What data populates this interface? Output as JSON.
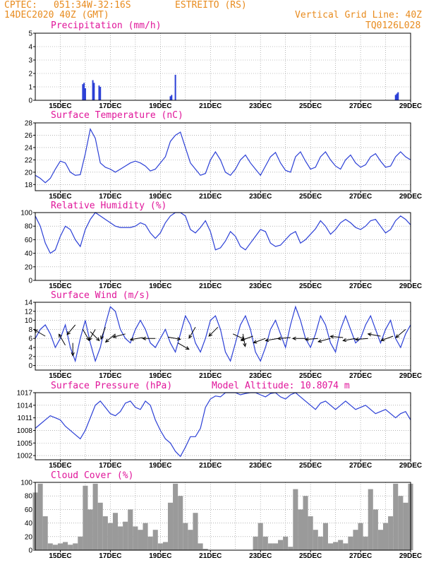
{
  "header": {
    "org": "CPTEC:",
    "coords": "051:34W-32:16S",
    "location": "ESTREITO (RS)",
    "date": "14DEC2020 40Z (GMT)",
    "grid_note": "Vertical Grid Line: 40Z",
    "code": "TQ0126L028"
  },
  "colors": {
    "header": "#e88b1e",
    "title": "#e0159a",
    "series": "#2b3fd6",
    "wind": "#000000"
  },
  "chart_data": [
    {
      "id": "precip",
      "type": "bar",
      "title": "Precipitation (mm/h)",
      "x_range": [
        14,
        29
      ],
      "ylim": [
        0,
        5
      ],
      "yticks": [
        0,
        1,
        2,
        3,
        4,
        5
      ],
      "x_ticks": [
        "15DEC",
        "17DEC",
        "19DEC",
        "21DEC",
        "23DEC",
        "25DEC",
        "27DEC",
        "29DEC"
      ],
      "x": [
        15.9,
        15.95,
        16.0,
        16.3,
        16.35,
        16.55,
        16.6,
        19.4,
        19.45,
        19.6,
        28.4,
        28.45,
        28.5
      ],
      "values": [
        1.2,
        1.3,
        0.9,
        1.5,
        1.3,
        1.1,
        1.0,
        0.3,
        0.4,
        1.9,
        0.4,
        0.5,
        0.6
      ]
    },
    {
      "id": "temp",
      "type": "line",
      "title": "Surface Temperature (nC)",
      "x_range": [
        14,
        29
      ],
      "ylim": [
        17,
        28
      ],
      "yticks": [
        18,
        20,
        22,
        24,
        26,
        28
      ],
      "x_ticks": [
        "15DEC",
        "17DEC",
        "19DEC",
        "21DEC",
        "23DEC",
        "25DEC",
        "27DEC",
        "29DEC"
      ],
      "x": [
        14.0,
        14.2,
        14.4,
        14.6,
        14.8,
        15.0,
        15.2,
        15.4,
        15.6,
        15.8,
        16.0,
        16.2,
        16.4,
        16.6,
        16.8,
        17.0,
        17.2,
        17.4,
        17.6,
        17.8,
        18.0,
        18.2,
        18.4,
        18.6,
        18.8,
        19.0,
        19.2,
        19.4,
        19.6,
        19.8,
        20.0,
        20.2,
        20.4,
        20.6,
        20.8,
        21.0,
        21.2,
        21.4,
        21.6,
        21.8,
        22.0,
        22.2,
        22.4,
        22.6,
        22.8,
        23.0,
        23.2,
        23.4,
        23.6,
        23.8,
        24.0,
        24.2,
        24.4,
        24.6,
        24.8,
        25.0,
        25.2,
        25.4,
        25.6,
        25.8,
        26.0,
        26.2,
        26.4,
        26.6,
        26.8,
        27.0,
        27.2,
        27.4,
        27.6,
        27.8,
        28.0,
        28.2,
        28.4,
        28.6,
        28.8,
        29.0
      ],
      "values": [
        19.5,
        19.0,
        18.3,
        19.0,
        20.5,
        21.8,
        21.5,
        20.0,
        19.5,
        19.6,
        23.0,
        27.0,
        25.5,
        21.5,
        20.8,
        20.5,
        20.0,
        20.5,
        21.0,
        21.5,
        21.8,
        21.5,
        21.0,
        20.2,
        20.5,
        21.5,
        22.5,
        25.0,
        26.0,
        26.5,
        24.0,
        21.5,
        20.5,
        19.5,
        19.8,
        22.0,
        23.3,
        22.0,
        20.0,
        19.5,
        20.5,
        22.0,
        22.8,
        21.5,
        20.5,
        19.5,
        21.0,
        22.5,
        23.2,
        21.5,
        20.3,
        20.0,
        22.5,
        23.3,
        21.8,
        20.5,
        20.8,
        22.5,
        23.3,
        22.0,
        21.0,
        20.5,
        22.0,
        22.8,
        21.5,
        20.8,
        21.2,
        22.5,
        23.0,
        21.8,
        20.8,
        21.0,
        22.5,
        23.3,
        22.5,
        22.0
      ]
    },
    {
      "id": "rh",
      "type": "line",
      "title": "Relative Humidity (%)",
      "x_range": [
        14,
        29
      ],
      "ylim": [
        0,
        100
      ],
      "yticks": [
        0,
        20,
        40,
        60,
        80,
        100
      ],
      "x_ticks": [
        "15DEC",
        "17DEC",
        "19DEC",
        "21DEC",
        "23DEC",
        "25DEC",
        "27DEC",
        "29DEC"
      ],
      "x": [
        14.0,
        14.2,
        14.4,
        14.6,
        14.8,
        15.0,
        15.2,
        15.4,
        15.6,
        15.8,
        16.0,
        16.2,
        16.4,
        16.6,
        16.8,
        17.0,
        17.2,
        17.4,
        17.6,
        17.8,
        18.0,
        18.2,
        18.4,
        18.6,
        18.8,
        19.0,
        19.2,
        19.4,
        19.6,
        19.8,
        20.0,
        20.2,
        20.4,
        20.6,
        20.8,
        21.0,
        21.2,
        21.4,
        21.6,
        21.8,
        22.0,
        22.2,
        22.4,
        22.6,
        22.8,
        23.0,
        23.2,
        23.4,
        23.6,
        23.8,
        24.0,
        24.2,
        24.4,
        24.6,
        24.8,
        25.0,
        25.2,
        25.4,
        25.6,
        25.8,
        26.0,
        26.2,
        26.4,
        26.6,
        26.8,
        27.0,
        27.2,
        27.4,
        27.6,
        27.8,
        28.0,
        28.2,
        28.4,
        28.6,
        28.8,
        29.0
      ],
      "values": [
        95,
        80,
        55,
        40,
        45,
        65,
        80,
        75,
        60,
        50,
        75,
        90,
        100,
        95,
        90,
        85,
        80,
        78,
        78,
        78,
        80,
        85,
        82,
        70,
        62,
        70,
        85,
        95,
        100,
        100,
        95,
        75,
        70,
        78,
        88,
        72,
        45,
        48,
        58,
        72,
        65,
        50,
        45,
        55,
        65,
        75,
        72,
        55,
        50,
        52,
        60,
        68,
        72,
        55,
        60,
        68,
        76,
        88,
        80,
        68,
        75,
        85,
        90,
        85,
        78,
        75,
        80,
        88,
        90,
        80,
        70,
        75,
        88,
        95,
        90,
        82
      ]
    },
    {
      "id": "wind",
      "type": "line",
      "title": "Surface Wind (m/s)",
      "x_range": [
        14,
        29
      ],
      "ylim": [
        -1,
        14
      ],
      "yticks": [
        0,
        2,
        4,
        6,
        8,
        10,
        12,
        14
      ],
      "x_ticks": [
        "15DEC",
        "17DEC",
        "19DEC",
        "21DEC",
        "23DEC",
        "25DEC",
        "27DEC",
        "29DEC"
      ],
      "x": [
        14.0,
        14.2,
        14.4,
        14.6,
        14.8,
        15.0,
        15.2,
        15.4,
        15.6,
        15.8,
        16.0,
        16.2,
        16.4,
        16.6,
        16.8,
        17.0,
        17.2,
        17.4,
        17.6,
        17.8,
        18.0,
        18.2,
        18.4,
        18.6,
        18.8,
        19.0,
        19.2,
        19.4,
        19.6,
        19.8,
        20.0,
        20.2,
        20.4,
        20.6,
        20.8,
        21.0,
        21.2,
        21.4,
        21.6,
        21.8,
        22.0,
        22.2,
        22.4,
        22.6,
        22.8,
        23.0,
        23.2,
        23.4,
        23.6,
        23.8,
        24.0,
        24.2,
        24.4,
        24.6,
        24.8,
        25.0,
        25.2,
        25.4,
        25.6,
        25.8,
        26.0,
        26.2,
        26.4,
        26.6,
        26.8,
        27.0,
        27.2,
        27.4,
        27.6,
        27.8,
        28.0,
        28.2,
        28.4,
        28.6,
        28.8,
        29.0
      ],
      "values": [
        6,
        8,
        9,
        7,
        4,
        6,
        9,
        4,
        1,
        6,
        10,
        5,
        1,
        4,
        9,
        13,
        12,
        8,
        6,
        5,
        8,
        10,
        8,
        5,
        4,
        6,
        8,
        5,
        3,
        7,
        11,
        9,
        5,
        3,
        6,
        10,
        11,
        8,
        3,
        1,
        5,
        9,
        11,
        8,
        3,
        1,
        4,
        8,
        10,
        7,
        4,
        9,
        13,
        10,
        6,
        4,
        7,
        11,
        9,
        5,
        3,
        8,
        11,
        8,
        5,
        6,
        9,
        11,
        8,
        5,
        8,
        10,
        6,
        4,
        7,
        9
      ],
      "arrows": [
        {
          "x": 14.4,
          "y": 6.5,
          "dir": 210
        },
        {
          "x": 15.2,
          "y": 4.5,
          "dir": 240
        },
        {
          "x": 15.5,
          "y": 5.0,
          "dir": 90
        },
        {
          "x": 15.6,
          "y": 9.0,
          "dir": 130
        },
        {
          "x": 15.9,
          "y": 8.0,
          "dir": 60
        },
        {
          "x": 16.2,
          "y": 7.5,
          "dir": 45
        },
        {
          "x": 16.4,
          "y": 8.0,
          "dir": 120
        },
        {
          "x": 16.8,
          "y": 8.5,
          "dir": 110
        },
        {
          "x": 17.2,
          "y": 7.0,
          "dir": 140
        },
        {
          "x": 17.6,
          "y": 7.0,
          "dir": 165
        },
        {
          "x": 18.3,
          "y": 6.2,
          "dir": 170
        },
        {
          "x": 18.8,
          "y": 6.0,
          "dir": 180
        },
        {
          "x": 19.3,
          "y": 6.3,
          "dir": 10
        },
        {
          "x": 19.7,
          "y": 5.0,
          "dir": 30
        },
        {
          "x": 20.4,
          "y": 8.5,
          "dir": 120
        },
        {
          "x": 21.3,
          "y": 8.5,
          "dir": 135
        },
        {
          "x": 21.9,
          "y": 7.0,
          "dir": 25
        },
        {
          "x": 22.3,
          "y": 7.0,
          "dir": 80
        },
        {
          "x": 22.7,
          "y": 6.5,
          "dir": 160
        },
        {
          "x": 23.2,
          "y": 6.0,
          "dir": 160
        },
        {
          "x": 23.7,
          "y": 6.0,
          "dir": 170
        },
        {
          "x": 24.2,
          "y": 6.2,
          "dir": 175
        },
        {
          "x": 24.8,
          "y": 6.0,
          "dir": 180
        },
        {
          "x": 25.3,
          "y": 6.0,
          "dir": 175
        },
        {
          "x": 25.8,
          "y": 6.0,
          "dir": 165
        },
        {
          "x": 26.3,
          "y": 6.2,
          "dir": 185
        },
        {
          "x": 26.8,
          "y": 6.0,
          "dir": 170
        },
        {
          "x": 27.3,
          "y": 6.0,
          "dir": 175
        },
        {
          "x": 27.8,
          "y": 6.5,
          "dir": 190
        },
        {
          "x": 28.3,
          "y": 6.5,
          "dir": 160
        },
        {
          "x": 28.8,
          "y": 8.0,
          "dir": 140
        }
      ]
    },
    {
      "id": "pressure",
      "type": "line",
      "title": "Surface Pressure (hPa)",
      "subtitle": "Model Altitude: 10.8074 m",
      "x_range": [
        14,
        29
      ],
      "ylim": [
        1001,
        1017
      ],
      "yticks": [
        1002,
        1005,
        1008,
        1011,
        1014,
        1017
      ],
      "x_ticks": [
        "15DEC",
        "17DEC",
        "19DEC",
        "21DEC",
        "23DEC",
        "25DEC",
        "27DEC",
        "29DEC"
      ],
      "x": [
        14.0,
        14.2,
        14.4,
        14.6,
        14.8,
        15.0,
        15.2,
        15.4,
        15.6,
        15.8,
        16.0,
        16.2,
        16.4,
        16.6,
        16.8,
        17.0,
        17.2,
        17.4,
        17.6,
        17.8,
        18.0,
        18.2,
        18.4,
        18.6,
        18.8,
        19.0,
        19.2,
        19.4,
        19.6,
        19.8,
        20.0,
        20.2,
        20.4,
        20.6,
        20.8,
        21.0,
        21.2,
        21.4,
        21.6,
        21.8,
        22.0,
        22.2,
        22.4,
        22.6,
        22.8,
        23.0,
        23.2,
        23.4,
        23.6,
        23.8,
        24.0,
        24.2,
        24.4,
        24.6,
        24.8,
        25.0,
        25.2,
        25.4,
        25.6,
        25.8,
        26.0,
        26.2,
        26.4,
        26.6,
        26.8,
        27.0,
        27.2,
        27.4,
        27.6,
        27.8,
        28.0,
        28.2,
        28.4,
        28.6,
        28.8,
        29.0
      ],
      "values": [
        1008.5,
        1009.5,
        1010.5,
        1011.5,
        1011.0,
        1010.5,
        1009.0,
        1008.0,
        1007.0,
        1006.0,
        1008.0,
        1011.0,
        1014.0,
        1015.0,
        1013.5,
        1012.0,
        1011.5,
        1012.5,
        1014.5,
        1015.0,
        1013.5,
        1013.0,
        1015.0,
        1014.0,
        1010.5,
        1008.0,
        1006.0,
        1005.0,
        1003.0,
        1001.8,
        1004.0,
        1006.5,
        1006.5,
        1008.5,
        1013.5,
        1015.5,
        1016.2,
        1016.0,
        1017.0,
        1017.5,
        1017.2,
        1016.5,
        1016.8,
        1017.5,
        1017.0,
        1016.5,
        1016.0,
        1016.8,
        1017.2,
        1016.0,
        1015.5,
        1016.5,
        1017.0,
        1016.0,
        1015.0,
        1014.0,
        1013.0,
        1014.5,
        1015.0,
        1014.0,
        1013.0,
        1014.0,
        1015.0,
        1014.0,
        1013.0,
        1013.5,
        1014.0,
        1013.0,
        1012.0,
        1012.5,
        1013.0,
        1012.0,
        1011.0,
        1012.0,
        1012.5,
        1010.5
      ]
    },
    {
      "id": "cloud",
      "type": "area",
      "title": "Cloud Cover (%)",
      "x_range": [
        14,
        29
      ],
      "ylim": [
        0,
        100
      ],
      "yticks": [
        0,
        20,
        40,
        60,
        80,
        100
      ],
      "x_ticks": [
        "15DEC",
        "17DEC",
        "19DEC",
        "21DEC",
        "23DEC",
        "25DEC",
        "27DEC",
        "29DEC"
      ],
      "x": [
        14.0,
        14.2,
        14.4,
        14.6,
        14.8,
        15.0,
        15.2,
        15.4,
        15.6,
        15.8,
        16.0,
        16.2,
        16.4,
        16.6,
        16.8,
        17.0,
        17.2,
        17.4,
        17.6,
        17.8,
        18.0,
        18.2,
        18.4,
        18.6,
        18.8,
        19.0,
        19.2,
        19.4,
        19.6,
        19.8,
        20.0,
        20.2,
        20.4,
        20.6,
        20.8,
        21.0,
        21.2,
        21.4,
        21.6,
        21.8,
        22.0,
        22.2,
        22.4,
        22.6,
        22.8,
        23.0,
        23.2,
        23.4,
        23.6,
        23.8,
        24.0,
        24.2,
        24.4,
        24.6,
        24.8,
        25.0,
        25.2,
        25.4,
        25.6,
        25.8,
        26.0,
        26.2,
        26.4,
        26.6,
        26.8,
        27.0,
        27.2,
        27.4,
        27.6,
        27.8,
        28.0,
        28.2,
        28.4,
        28.6,
        28.8,
        29.0
      ],
      "values": [
        85,
        98,
        50,
        10,
        8,
        10,
        12,
        8,
        10,
        20,
        95,
        60,
        98,
        70,
        50,
        40,
        55,
        35,
        42,
        60,
        35,
        30,
        40,
        20,
        30,
        10,
        12,
        70,
        98,
        80,
        40,
        30,
        55,
        10,
        2,
        0,
        0,
        0,
        0,
        0,
        0,
        0,
        0,
        0,
        20,
        40,
        20,
        10,
        10,
        15,
        20,
        5,
        90,
        60,
        80,
        50,
        30,
        20,
        40,
        10,
        12,
        15,
        10,
        20,
        30,
        40,
        20,
        90,
        60,
        30,
        40,
        50,
        98,
        80,
        70,
        98
      ]
    }
  ]
}
